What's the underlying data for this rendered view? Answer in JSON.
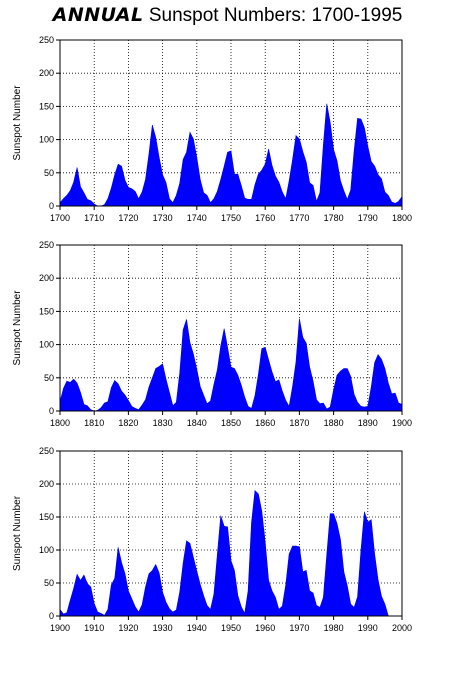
{
  "figure_title": {
    "script_part": "ANNUAL",
    "main_part": "Sunspot Numbers:  1700-1995"
  },
  "chart_data": [
    {
      "type": "area",
      "x_start": 1700,
      "x_step": 1,
      "xlim": [
        1700,
        1800
      ],
      "ylim": [
        0,
        250
      ],
      "xticks": [
        "1700",
        "1710",
        "1720",
        "1730",
        "1740",
        "1750",
        "1760",
        "1770",
        "1780",
        "1790",
        "1800"
      ],
      "yticks": [
        "0",
        "50",
        "100",
        "150",
        "200",
        "250"
      ],
      "ylabel": "Sunspot Number",
      "grid": true,
      "color": "#0000ff",
      "series": [
        {
          "values": [
            5,
            11,
            16,
            23,
            36,
            58,
            29,
            20,
            10,
            8,
            3,
            0,
            0,
            2,
            11,
            27,
            47,
            63,
            60,
            39,
            28,
            26,
            22,
            11,
            21,
            40,
            78,
            122,
            103,
            73,
            47,
            35,
            11,
            5,
            16,
            34,
            70,
            81,
            111,
            101,
            73,
            40,
            20,
            16,
            5,
            11,
            22,
            40,
            60,
            81,
            83,
            48,
            48,
            31,
            12,
            10,
            10,
            32,
            48,
            54,
            63,
            86,
            61,
            45,
            36,
            21,
            11,
            38,
            70,
            106,
            101,
            82,
            66,
            35,
            31,
            7,
            20,
            92,
            154,
            126,
            85,
            68,
            38,
            23,
            10,
            24,
            83,
            132,
            131,
            118,
            90,
            67,
            60,
            47,
            41,
            21,
            16,
            6,
            4,
            7,
            14
          ]
        }
      ]
    },
    {
      "type": "area",
      "x_start": 1800,
      "x_step": 1,
      "xlim": [
        1800,
        1900
      ],
      "ylim": [
        0,
        250
      ],
      "xticks": [
        "1800",
        "1810",
        "1820",
        "1830",
        "1840",
        "1850",
        "1860",
        "1870",
        "1880",
        "1890",
        "1900"
      ],
      "yticks": [
        "0",
        "50",
        "100",
        "150",
        "200",
        "250"
      ],
      "ylabel": "Sunspot Number",
      "grid": true,
      "color": "#0000ff",
      "series": [
        {
          "values": [
            14,
            34,
            45,
            43,
            48,
            42,
            28,
            10,
            8,
            2,
            0,
            1,
            5,
            12,
            14,
            35,
            46,
            41,
            30,
            24,
            16,
            7,
            4,
            2,
            9,
            17,
            36,
            50,
            64,
            67,
            71,
            48,
            28,
            8,
            13,
            57,
            122,
            138,
            103,
            86,
            63,
            37,
            24,
            11,
            15,
            40,
            62,
            98,
            124,
            96,
            66,
            64,
            54,
            39,
            21,
            7,
            4,
            23,
            55,
            94,
            96,
            77,
            59,
            44,
            47,
            30,
            16,
            7,
            37,
            74,
            139,
            111,
            102,
            66,
            45,
            17,
            11,
            12,
            3,
            6,
            32,
            54,
            60,
            64,
            64,
            52,
            25,
            13,
            7,
            6,
            7,
            36,
            73,
            85,
            78,
            64,
            42,
            26,
            27,
            12,
            10
          ]
        }
      ]
    },
    {
      "type": "area",
      "x_start": 1900,
      "x_step": 1,
      "xlim": [
        1900,
        2000
      ],
      "ylim": [
        0,
        250
      ],
      "xticks": [
        "1900",
        "1910",
        "1920",
        "1930",
        "1940",
        "1950",
        "1960",
        "1970",
        "1980",
        "1990",
        "2000"
      ],
      "yticks": [
        "0",
        "50",
        "100",
        "150",
        "200",
        "250"
      ],
      "ylabel": "Sunspot Number",
      "grid": true,
      "color": "#0000ff",
      "series": [
        {
          "values": [
            10,
            3,
            5,
            24,
            42,
            63,
            54,
            62,
            49,
            44,
            19,
            6,
            4,
            1,
            10,
            47,
            57,
            104,
            81,
            64,
            38,
            26,
            14,
            6,
            17,
            44,
            64,
            69,
            78,
            65,
            36,
            21,
            11,
            6,
            9,
            36,
            80,
            114,
            110,
            89,
            68,
            48,
            31,
            16,
            10,
            33,
            93,
            152,
            136,
            135,
            84,
            69,
            31,
            14,
            4,
            38,
            142,
            190,
            185,
            159,
            112,
            54,
            38,
            28,
            10,
            15,
            47,
            94,
            106,
            106,
            105,
            67,
            69,
            38,
            35,
            16,
            13,
            28,
            93,
            155,
            155,
            140,
            116,
            67,
            46,
            18,
            13,
            29,
            100,
            158,
            142,
            146,
            94,
            55,
            30,
            18,
            0,
            0,
            0,
            0,
            0
          ]
        }
      ]
    }
  ]
}
